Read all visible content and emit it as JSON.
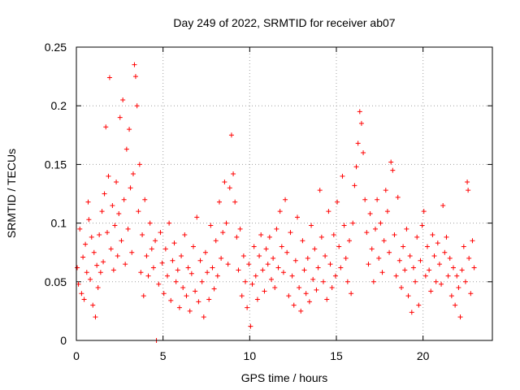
{
  "chart_data": {
    "type": "scatter",
    "title": "Day 249 of 2022, SRMTID for receiver ab07",
    "xlabel": "GPS time / hours",
    "ylabel": "SRMTID / TECUs",
    "xlim": [
      0,
      24
    ],
    "ylim": [
      0,
      0.25
    ],
    "x_ticks": [
      0,
      5,
      10,
      15,
      20
    ],
    "y_ticks": [
      0,
      0.05,
      0.1,
      0.15,
      0.2,
      0.25
    ],
    "x_tick_labels": [
      "0",
      "5",
      "10",
      "15",
      "20"
    ],
    "y_tick_labels": [
      "0",
      "0.05",
      "0.1",
      "0.15",
      "0.2",
      "0.25"
    ],
    "grid": true,
    "marker": "plus",
    "color": "#ff0000",
    "series": [
      {
        "name": "ab07",
        "points": [
          [
            0.05,
            0.062
          ],
          [
            0.12,
            0.048
          ],
          [
            0.2,
            0.095
          ],
          [
            0.3,
            0.04
          ],
          [
            0.38,
            0.071
          ],
          [
            0.45,
            0.035
          ],
          [
            0.52,
            0.082
          ],
          [
            0.6,
            0.058
          ],
          [
            0.68,
            0.118
          ],
          [
            0.72,
            0.103
          ],
          [
            0.8,
            0.052
          ],
          [
            0.88,
            0.088
          ],
          [
            0.95,
            0.03
          ],
          [
            1.02,
            0.075
          ],
          [
            1.1,
            0.02
          ],
          [
            1.18,
            0.064
          ],
          [
            1.25,
            0.045
          ],
          [
            1.32,
            0.09
          ],
          [
            1.4,
            0.058
          ],
          [
            1.48,
            0.11
          ],
          [
            1.55,
            0.067
          ],
          [
            1.62,
            0.125
          ],
          [
            1.7,
            0.182
          ],
          [
            1.78,
            0.092
          ],
          [
            1.85,
            0.14
          ],
          [
            1.92,
            0.224
          ],
          [
            2.0,
            0.078
          ],
          [
            2.08,
            0.115
          ],
          [
            2.15,
            0.06
          ],
          [
            2.22,
            0.098
          ],
          [
            2.3,
            0.135
          ],
          [
            2.38,
            0.072
          ],
          [
            2.45,
            0.108
          ],
          [
            2.52,
            0.19
          ],
          [
            2.6,
            0.085
          ],
          [
            2.68,
            0.205
          ],
          [
            2.75,
            0.12
          ],
          [
            2.82,
            0.065
          ],
          [
            2.9,
            0.163
          ],
          [
            2.98,
            0.095
          ],
          [
            3.05,
            0.18
          ],
          [
            3.12,
            0.13
          ],
          [
            3.2,
            0.075
          ],
          [
            3.28,
            0.142
          ],
          [
            3.35,
            0.235
          ],
          [
            3.42,
            0.225
          ],
          [
            3.5,
            0.2
          ],
          [
            3.58,
            0.11
          ],
          [
            3.65,
            0.15
          ],
          [
            3.72,
            0.058
          ],
          [
            3.8,
            0.09
          ],
          [
            3.88,
            0.038
          ],
          [
            3.95,
            0.12
          ],
          [
            4.05,
            0.072
          ],
          [
            4.15,
            0.055
          ],
          [
            4.25,
            0.1
          ],
          [
            4.35,
            0.078
          ],
          [
            4.45,
            0.062
          ],
          [
            4.55,
            0.085
          ],
          [
            4.62,
            0.0
          ],
          [
            4.75,
            0.048
          ],
          [
            4.85,
            0.092
          ],
          [
            4.95,
            0.066
          ],
          [
            5.05,
            0.04
          ],
          [
            5.15,
            0.078
          ],
          [
            5.25,
            0.055
          ],
          [
            5.35,
            0.1
          ],
          [
            5.45,
            0.034
          ],
          [
            5.55,
            0.068
          ],
          [
            5.65,
            0.083
          ],
          [
            5.75,
            0.05
          ],
          [
            5.85,
            0.06
          ],
          [
            5.95,
            0.028
          ],
          [
            6.05,
            0.072
          ],
          [
            6.15,
            0.045
          ],
          [
            6.25,
            0.09
          ],
          [
            6.35,
            0.038
          ],
          [
            6.45,
            0.062
          ],
          [
            6.55,
            0.025
          ],
          [
            6.65,
            0.057
          ],
          [
            6.75,
            0.08
          ],
          [
            6.85,
            0.042
          ],
          [
            6.95,
            0.105
          ],
          [
            7.05,
            0.033
          ],
          [
            7.15,
            0.068
          ],
          [
            7.25,
            0.05
          ],
          [
            7.35,
            0.02
          ],
          [
            7.45,
            0.075
          ],
          [
            7.55,
            0.058
          ],
          [
            7.65,
            0.035
          ],
          [
            7.75,
            0.098
          ],
          [
            7.85,
            0.062
          ],
          [
            7.95,
            0.044
          ],
          [
            8.05,
            0.085
          ],
          [
            8.15,
            0.055
          ],
          [
            8.25,
            0.118
          ],
          [
            8.35,
            0.07
          ],
          [
            8.45,
            0.092
          ],
          [
            8.55,
            0.135
          ],
          [
            8.65,
            0.1
          ],
          [
            8.75,
            0.065
          ],
          [
            8.85,
            0.13
          ],
          [
            8.95,
            0.175
          ],
          [
            9.05,
            0.142
          ],
          [
            9.15,
            0.118
          ],
          [
            9.25,
            0.088
          ],
          [
            9.35,
            0.06
          ],
          [
            9.45,
            0.095
          ],
          [
            9.55,
            0.038
          ],
          [
            9.65,
            0.072
          ],
          [
            9.75,
            0.05
          ],
          [
            9.85,
            0.028
          ],
          [
            9.95,
            0.065
          ],
          [
            10.05,
            0.012
          ],
          [
            10.15,
            0.048
          ],
          [
            10.25,
            0.08
          ],
          [
            10.35,
            0.055
          ],
          [
            10.45,
            0.035
          ],
          [
            10.55,
            0.072
          ],
          [
            10.65,
            0.09
          ],
          [
            10.75,
            0.06
          ],
          [
            10.85,
            0.042
          ],
          [
            10.95,
            0.078
          ],
          [
            11.05,
            0.065
          ],
          [
            11.15,
            0.088
          ],
          [
            11.25,
            0.052
          ],
          [
            11.35,
            0.07
          ],
          [
            11.45,
            0.045
          ],
          [
            11.55,
            0.095
          ],
          [
            11.65,
            0.062
          ],
          [
            11.75,
            0.11
          ],
          [
            11.85,
            0.08
          ],
          [
            11.95,
            0.058
          ],
          [
            12.05,
            0.12
          ],
          [
            12.15,
            0.075
          ],
          [
            12.25,
            0.038
          ],
          [
            12.35,
            0.092
          ],
          [
            12.45,
            0.055
          ],
          [
            12.55,
            0.03
          ],
          [
            12.65,
            0.068
          ],
          [
            12.75,
            0.105
          ],
          [
            12.85,
            0.045
          ],
          [
            12.95,
            0.025
          ],
          [
            13.05,
            0.085
          ],
          [
            13.15,
            0.06
          ],
          [
            13.25,
            0.04
          ],
          [
            13.35,
            0.07
          ],
          [
            13.45,
            0.033
          ],
          [
            13.55,
            0.098
          ],
          [
            13.65,
            0.052
          ],
          [
            13.75,
            0.078
          ],
          [
            13.85,
            0.043
          ],
          [
            13.95,
            0.062
          ],
          [
            14.05,
            0.128
          ],
          [
            14.15,
            0.088
          ],
          [
            14.25,
            0.05
          ],
          [
            14.35,
            0.072
          ],
          [
            14.45,
            0.035
          ],
          [
            14.55,
            0.11
          ],
          [
            14.65,
            0.065
          ],
          [
            14.75,
            0.045
          ],
          [
            14.85,
            0.09
          ],
          [
            14.95,
            0.055
          ],
          [
            15.05,
            0.118
          ],
          [
            15.15,
            0.08
          ],
          [
            15.25,
            0.062
          ],
          [
            15.35,
            0.14
          ],
          [
            15.45,
            0.098
          ],
          [
            15.55,
            0.07
          ],
          [
            15.65,
            0.05
          ],
          [
            15.75,
            0.085
          ],
          [
            15.85,
            0.04
          ],
          [
            15.95,
            0.1
          ],
          [
            16.05,
            0.132
          ],
          [
            16.15,
            0.148
          ],
          [
            16.25,
            0.168
          ],
          [
            16.35,
            0.195
          ],
          [
            16.45,
            0.185
          ],
          [
            16.55,
            0.16
          ],
          [
            16.65,
            0.12
          ],
          [
            16.75,
            0.092
          ],
          [
            16.85,
            0.065
          ],
          [
            16.95,
            0.108
          ],
          [
            17.05,
            0.078
          ],
          [
            17.15,
            0.05
          ],
          [
            17.25,
            0.095
          ],
          [
            17.35,
            0.12
          ],
          [
            17.45,
            0.07
          ],
          [
            17.55,
            0.1
          ],
          [
            17.65,
            0.058
          ],
          [
            17.75,
            0.085
          ],
          [
            17.85,
            0.128
          ],
          [
            17.95,
            0.11
          ],
          [
            18.05,
            0.075
          ],
          [
            18.15,
            0.152
          ],
          [
            18.25,
            0.145
          ],
          [
            18.35,
            0.09
          ],
          [
            18.45,
            0.055
          ],
          [
            18.55,
            0.122
          ],
          [
            18.65,
            0.068
          ],
          [
            18.75,
            0.045
          ],
          [
            18.85,
            0.08
          ],
          [
            18.95,
            0.06
          ],
          [
            19.05,
            0.095
          ],
          [
            19.15,
            0.038
          ],
          [
            19.25,
            0.072
          ],
          [
            19.35,
            0.024
          ],
          [
            19.45,
            0.062
          ],
          [
            19.55,
            0.05
          ],
          [
            19.65,
            0.088
          ],
          [
            19.75,
            0.03
          ],
          [
            19.85,
            0.068
          ],
          [
            19.95,
            0.098
          ],
          [
            20.05,
            0.11
          ],
          [
            20.15,
            0.055
          ],
          [
            20.25,
            0.08
          ],
          [
            20.35,
            0.06
          ],
          [
            20.45,
            0.042
          ],
          [
            20.55,
            0.09
          ],
          [
            20.65,
            0.072
          ],
          [
            20.75,
            0.05
          ],
          [
            20.85,
            0.083
          ],
          [
            20.95,
            0.065
          ],
          [
            21.05,
            0.048
          ],
          [
            21.15,
            0.115
          ],
          [
            21.25,
            0.075
          ],
          [
            21.35,
            0.088
          ],
          [
            21.45,
            0.055
          ],
          [
            21.55,
            0.07
          ],
          [
            21.65,
            0.038
          ],
          [
            21.75,
            0.062
          ],
          [
            21.85,
            0.03
          ],
          [
            21.95,
            0.055
          ],
          [
            22.05,
            0.045
          ],
          [
            22.15,
            0.02
          ],
          [
            22.25,
            0.06
          ],
          [
            22.35,
            0.08
          ],
          [
            22.45,
            0.05
          ],
          [
            22.55,
            0.135
          ],
          [
            22.6,
            0.128
          ],
          [
            22.65,
            0.07
          ],
          [
            22.75,
            0.04
          ],
          [
            22.85,
            0.085
          ],
          [
            22.95,
            0.062
          ]
        ]
      }
    ]
  }
}
